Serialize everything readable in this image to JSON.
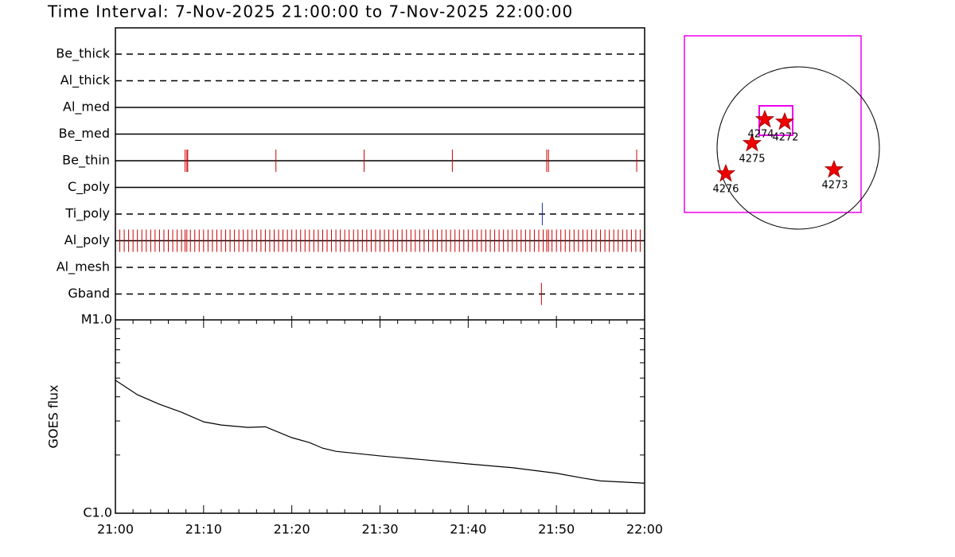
{
  "chart_data": [
    {
      "type": "event",
      "title": "Time Interval:  7-Nov-2025 21:00:00 to  7-Nov-2025 22:00:00",
      "xlim": [
        0,
        60
      ],
      "series": [
        {
          "name": "Be_thick",
          "style": "dashed",
          "values": []
        },
        {
          "name": "Al_thick",
          "style": "dashed",
          "values": []
        },
        {
          "name": "Al_med",
          "style": "solid",
          "values": []
        },
        {
          "name": "Be_med",
          "style": "solid",
          "values": []
        },
        {
          "name": "Be_thin",
          "style": "solid",
          "color": "#cc0000",
          "values": [
            7.9,
            8.1,
            8.2,
            18.2,
            28.2,
            38.2,
            48.9,
            49.1,
            59.1
          ]
        },
        {
          "name": "C_poly",
          "style": "solid",
          "values": []
        },
        {
          "name": "Ti_poly",
          "style": "dashed",
          "color": "#2233aa",
          "values": [
            48.4
          ]
        },
        {
          "name": "Al_poly",
          "style": "solid",
          "color": "#cc0000",
          "values": [
            0.5,
            1,
            1.5,
            2,
            2.5,
            3,
            3.5,
            4,
            4.5,
            5,
            5.5,
            6,
            6.5,
            7,
            7.5,
            7.9,
            8.1,
            8.5,
            9,
            9.5,
            10,
            10.5,
            11,
            11.5,
            12,
            12.5,
            13,
            13.5,
            14,
            14.5,
            15,
            15.5,
            16,
            16.5,
            17,
            17.5,
            18,
            18.5,
            19,
            19.5,
            20,
            20.5,
            21,
            21.5,
            22,
            22.5,
            23,
            23.5,
            24,
            24.5,
            25,
            25.5,
            26,
            26.5,
            27,
            27.5,
            28,
            28.5,
            29,
            29.5,
            30,
            30.5,
            31,
            31.5,
            32,
            32.5,
            33,
            33.5,
            34,
            34.5,
            35,
            35.5,
            36,
            36.5,
            37,
            37.5,
            38,
            38.5,
            39,
            39.5,
            40,
            40.5,
            41,
            41.5,
            42,
            42.5,
            43,
            43.5,
            44,
            44.5,
            45,
            45.5,
            46,
            46.5,
            47,
            47.5,
            48,
            48.5,
            48.9,
            49.1,
            49.5,
            50,
            50.5,
            51,
            51.5,
            52,
            52.5,
            53,
            53.5,
            54,
            54.5,
            55,
            55.5,
            56,
            56.5,
            57,
            57.5,
            58,
            58.5,
            59,
            59.5
          ]
        },
        {
          "name": "Al_mesh",
          "style": "dashed",
          "values": []
        },
        {
          "name": "Gband",
          "style": "dashed",
          "color": "#cc0000",
          "values": [
            48.3
          ]
        }
      ]
    },
    {
      "type": "line",
      "ylabel": "GOES flux",
      "log_scale": true,
      "xlim": [
        0,
        60
      ],
      "xticks": [
        {
          "value": 0,
          "label": "21:00"
        },
        {
          "value": 10,
          "label": "21:10"
        },
        {
          "value": 20,
          "label": "21:20"
        },
        {
          "value": 30,
          "label": "21:30"
        },
        {
          "value": 40,
          "label": "21:40"
        },
        {
          "value": 50,
          "label": "21:50"
        },
        {
          "value": 60,
          "label": "22:00"
        }
      ],
      "xminor_ticks": [
        2,
        4,
        6,
        8,
        12,
        14,
        16,
        18,
        22,
        24,
        26,
        28,
        32,
        34,
        36,
        38,
        42,
        44,
        46,
        48,
        52,
        54,
        56,
        58
      ],
      "ylim": [
        1e-06,
        1e-05
      ],
      "yticks": [
        {
          "value": 1e-06,
          "label": "C1.0"
        },
        {
          "value": 1e-05,
          "label": "M1.0"
        }
      ],
      "yminor_ticks": [
        2e-06,
        3e-06,
        4e-06,
        5e-06,
        6e-06,
        7e-06,
        8e-06,
        9e-06
      ],
      "color": "#000000",
      "x": [
        0,
        2.5,
        5,
        7.5,
        10,
        12,
        15,
        17,
        20,
        22,
        23.5,
        25,
        30,
        35,
        40,
        45,
        50,
        53,
        55,
        60
      ],
      "values": [
        4.87e-06,
        4.1e-06,
        3.66e-06,
        3.33e-06,
        2.97e-06,
        2.86e-06,
        2.78e-06,
        2.8e-06,
        2.46e-06,
        2.32e-06,
        2.17e-06,
        2.09e-06,
        1.98e-06,
        1.89e-06,
        1.8e-06,
        1.72e-06,
        1.61e-06,
        1.52e-06,
        1.47e-06,
        1.43e-06
      ]
    }
  ],
  "map": {
    "regions": [
      "4274",
      "4272",
      "4275",
      "4276",
      "4273"
    ]
  }
}
